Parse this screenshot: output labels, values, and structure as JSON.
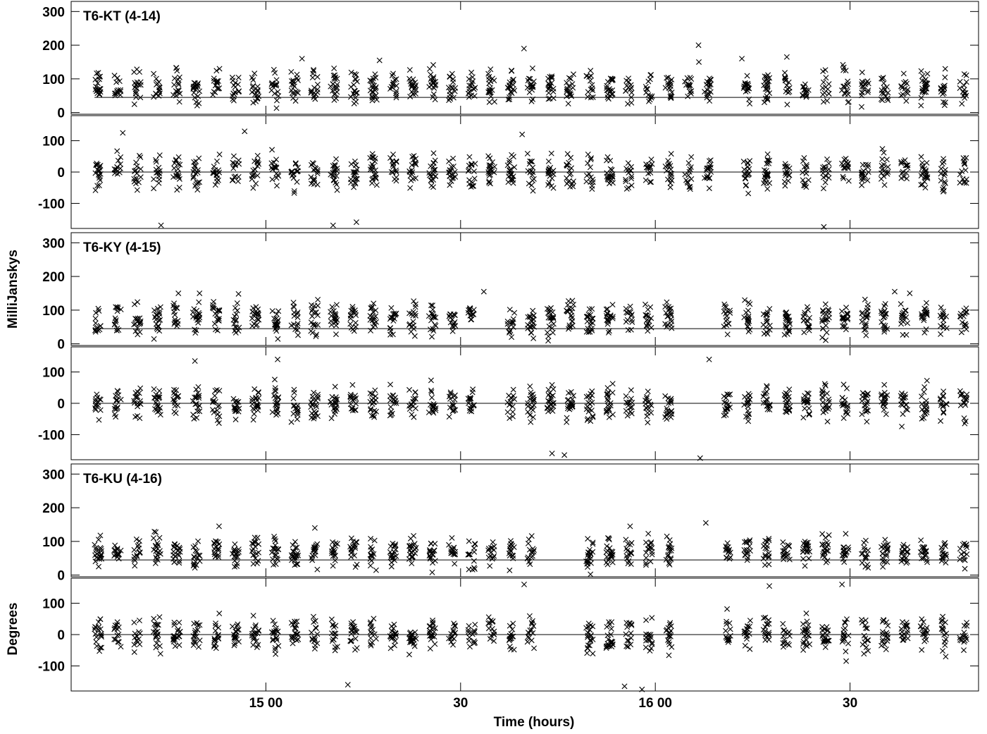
{
  "chart_data": {
    "type": "scatter",
    "xlabel": "Time (hours)",
    "xlim": [
      14.5,
      16.83
    ],
    "x_ticks": [
      {
        "value": 15.0,
        "label": "15 00"
      },
      {
        "value": 15.5,
        "label": "30"
      },
      {
        "value": 16.0,
        "label": "16 00"
      },
      {
        "value": 16.5,
        "label": "30"
      }
    ],
    "left_axis_labels": [
      {
        "text": "MilliJanskys",
        "spans": "amplitude panels"
      },
      {
        "text": "Degrees",
        "spans": "phase panels"
      }
    ],
    "amplitude_axis": {
      "ylim": [
        -5,
        330
      ],
      "ticks": [
        0,
        100,
        200,
        300
      ]
    },
    "phase_axis": {
      "ylim": [
        -180,
        180
      ],
      "ticks": [
        -100,
        0,
        100
      ]
    },
    "marker": "x",
    "baselines": [
      {
        "label": "T6-KT (4-14)",
        "amplitude": {
          "model_level": 45,
          "typical_range": [
            10,
            120
          ],
          "outliers": [
            200,
            190,
            165,
            160,
            160,
            155,
            150
          ]
        },
        "phase": {
          "model_level": 0,
          "typical_range": [
            -60,
            60
          ],
          "outliers": [
            130,
            125,
            120,
            -175,
            -170,
            -170,
            -160
          ]
        },
        "gaps": [
          [
            16.15,
            16.2
          ]
        ]
      },
      {
        "label": "T6-KY (4-15)",
        "amplitude": {
          "model_level": 45,
          "typical_range": [
            10,
            120
          ],
          "outliers": [
            155,
            155,
            150,
            150
          ]
        },
        "phase": {
          "model_level": 0,
          "typical_range": [
            -60,
            60
          ],
          "outliers": [
            140,
            140,
            135,
            -175,
            -165,
            -160
          ]
        },
        "gaps": [
          [
            15.52,
            15.6
          ],
          [
            16.05,
            16.15
          ]
        ]
      },
      {
        "label": "T6-KU (4-16)",
        "amplitude": {
          "model_level": 45,
          "typical_range": [
            10,
            110
          ],
          "outliers": [
            155,
            145,
            145,
            140
          ]
        },
        "phase": {
          "model_level": 0,
          "typical_range": [
            -60,
            60
          ],
          "outliers": [
            160,
            160,
            155,
            -165,
            -160,
            -175
          ]
        },
        "gaps": [
          [
            15.72,
            15.78
          ],
          [
            16.05,
            16.15
          ]
        ]
      }
    ]
  }
}
